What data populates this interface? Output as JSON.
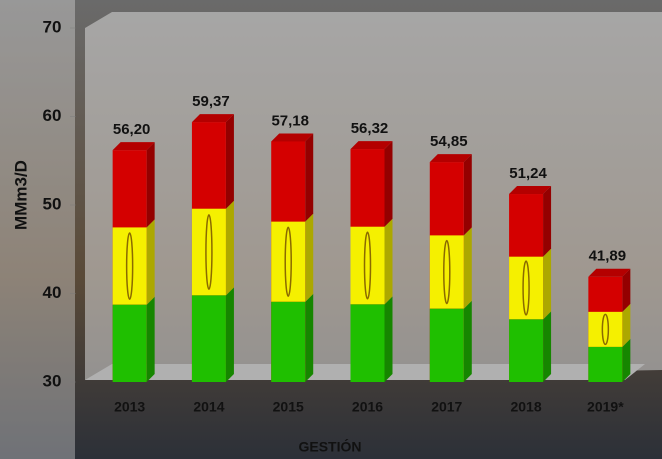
{
  "chart_data": {
    "type": "bar",
    "y_label": "MMm3/D",
    "x_label": "GESTIÓN",
    "categories": [
      "2013",
      "2014",
      "2015",
      "2016",
      "2017",
      "2018",
      "2019*"
    ],
    "values": [
      56.2,
      59.37,
      57.18,
      56.32,
      54.85,
      51.24,
      41.89
    ],
    "value_labels": [
      "56,20",
      "59,37",
      "57,18",
      "56,32",
      "54,85",
      "51,24",
      "41,89"
    ],
    "colors": [
      "#1fbf00",
      "#f5f000",
      "#d40000"
    ],
    "ylim": [
      30,
      70
    ],
    "yticks": [
      30,
      40,
      50,
      60,
      70
    ]
  }
}
